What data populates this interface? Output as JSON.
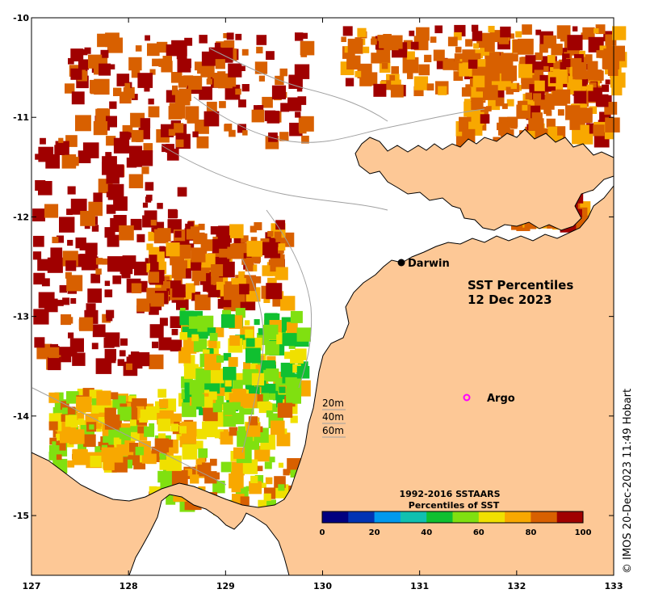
{
  "map": {
    "title_line1": "SST Percentiles",
    "title_line2": "12 Dec 2023",
    "land_color": "#fdc896",
    "nodata_color": "#ffffff",
    "coast_color": "#000000",
    "isobath_color": "#a0a0a0",
    "lon_range": [
      127,
      133
    ],
    "lat_range": [
      -15.6,
      -10
    ],
    "lon_ticks": [
      "127",
      "128",
      "129",
      "130",
      "131",
      "132",
      "133"
    ],
    "lat_ticks": [
      "-10",
      "-11",
      "-12",
      "-13",
      "-14",
      "-15"
    ],
    "places": [
      {
        "name": "Darwin",
        "marker": "filled-circle",
        "color": "#000000"
      },
      {
        "name": "Argo",
        "marker": "open-circle",
        "color": "#ff00ff"
      }
    ],
    "depth_contours": [
      "20m",
      "40m",
      "60m"
    ]
  },
  "legend": {
    "title_line1": "1992-2016 SSTAARS",
    "title_line2": "Percentiles of SST",
    "colors": [
      "#000080",
      "#0033b3",
      "#0099ee",
      "#10c0b0",
      "#10c030",
      "#80e010",
      "#f0e000",
      "#f8a800",
      "#d86000",
      "#a00000"
    ],
    "tick_labels": [
      "0",
      "20",
      "40",
      "60",
      "80",
      "100"
    ]
  },
  "credit": "© IMOS 20-Dec-2023 11:49 Hobart"
}
